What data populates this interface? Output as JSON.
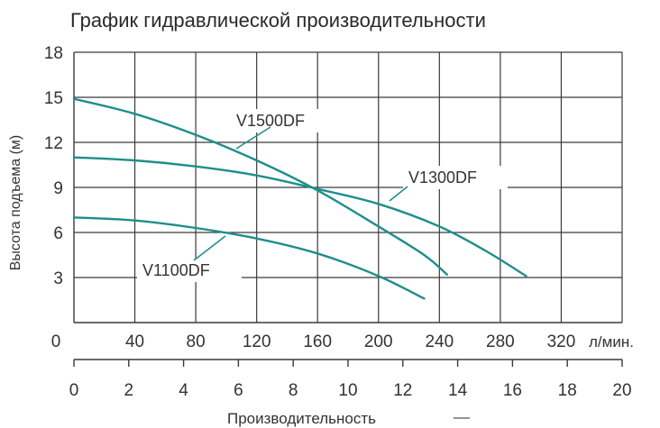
{
  "chart_data": {
    "type": "line",
    "title": "График гидравлической производительности",
    "ylabel": "Высота подъема (м)",
    "xlabel": "Производительность",
    "x_unit_primary": "л/мин.",
    "y_ticks": [
      "3",
      "6",
      "9",
      "12",
      "15",
      "18"
    ],
    "x_ticks_primary": [
      "0",
      "40",
      "80",
      "120",
      "160",
      "200",
      "240",
      "280",
      "320"
    ],
    "x_ticks_secondary": [
      "0",
      "2",
      "4",
      "6",
      "8",
      "10",
      "12",
      "14",
      "16",
      "18",
      "20"
    ],
    "ylim": [
      0,
      18
    ],
    "xlim": [
      0,
      360
    ],
    "grid": true,
    "series_color": "#1e8f8a",
    "series": [
      {
        "name": "V1500DF",
        "x": [
          0,
          40,
          80,
          120,
          160,
          200,
          230,
          245
        ],
        "y": [
          14.9,
          13.9,
          12.5,
          10.8,
          8.8,
          6.4,
          4.5,
          3.2
        ]
      },
      {
        "name": "V1300DF",
        "x": [
          0,
          40,
          80,
          120,
          160,
          200,
          240,
          270,
          297
        ],
        "y": [
          11.0,
          10.8,
          10.4,
          9.8,
          8.9,
          7.9,
          6.4,
          4.8,
          3.1
        ]
      },
      {
        "name": "V1100DF",
        "x": [
          0,
          40,
          80,
          120,
          160,
          200,
          230
        ],
        "y": [
          7.0,
          6.8,
          6.3,
          5.6,
          4.6,
          3.1,
          1.6
        ]
      }
    ]
  }
}
